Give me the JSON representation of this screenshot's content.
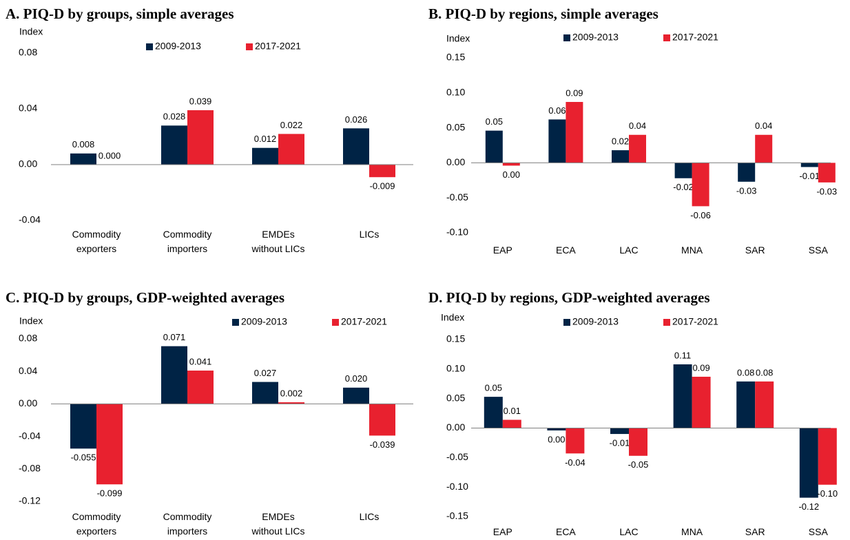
{
  "chart_data": [
    {
      "type": "bar",
      "title": "A. PIQ-D by groups, simple averages",
      "y_label": "Index",
      "categories": [
        "Commodity exporters",
        "Commodity importers",
        "EMDEs without LICs",
        "LICs"
      ],
      "series": [
        {
          "name": "2009-2013",
          "color": "#002345",
          "values": [
            0.008,
            0.028,
            0.012,
            0.026
          ],
          "value_labels": [
            "0.008",
            "0.028",
            "0.012",
            "0.026"
          ]
        },
        {
          "name": "2017-2021",
          "color": "#e8212f",
          "values": [
            0,
            0.039,
            0.022,
            -0.009
          ],
          "value_labels": [
            "0.000",
            "0.039",
            "0.022",
            "-0.009"
          ]
        }
      ],
      "ylim": [
        -0.04,
        0.08
      ],
      "yticks": [
        -0.04,
        {
          "value": 0,
          "label": "0.00"
        },
        0.04,
        0.08
      ]
    },
    {
      "type": "bar",
      "title": "B. PIQ-D by regions, simple averages",
      "y_label": "Index",
      "categories": [
        "EAP",
        "ECA",
        "LAC",
        "MNA",
        "SAR",
        "SSA"
      ],
      "series": [
        {
          "name": "2009-2013",
          "color": "#002345",
          "values": [
            0.046,
            0.062,
            0.018,
            -0.022,
            -0.027,
            -0.006
          ],
          "value_labels": [
            "0.05",
            "0.06",
            "0.02",
            "-0.02",
            "-0.03",
            "-0.01"
          ]
        },
        {
          "name": "2017-2021",
          "color": "#e8212f",
          "values": [
            -0.004,
            0.087,
            0.04,
            -0.062,
            0.04,
            -0.028
          ],
          "value_labels": [
            "0.00",
            "0.09",
            "0.04",
            "-0.06",
            "0.04",
            "-0.03"
          ]
        }
      ],
      "ylim": [
        -0.1,
        0.15
      ],
      "yticks": [
        {
          "value": -0.1,
          "label": "-0.10"
        },
        -0.05,
        {
          "value": 0,
          "label": "0.00"
        },
        0.05,
        {
          "value": 0.1,
          "label": "0.10"
        },
        0.15
      ]
    },
    {
      "type": "bar",
      "title": "C. PIQ-D by groups, GDP-weighted averages",
      "y_label": "Index",
      "categories": [
        "Commodity exporters",
        "Commodity importers",
        "EMDEs without LICs",
        "LICs"
      ],
      "series": [
        {
          "name": "2009-2013",
          "color": "#002345",
          "values": [
            -0.055,
            0.071,
            0.027,
            0.02
          ],
          "value_labels": [
            "-0.055",
            "0.071",
            "0.027",
            "0.020"
          ]
        },
        {
          "name": "2017-2021",
          "color": "#e8212f",
          "values": [
            -0.099,
            0.041,
            0.002,
            -0.039
          ],
          "value_labels": [
            "-0.099",
            "0.041",
            "0.002",
            "-0.039"
          ]
        }
      ],
      "ylim": [
        -0.12,
        0.08
      ],
      "yticks": [
        -0.12,
        -0.08,
        -0.04,
        {
          "value": 0,
          "label": "0.00"
        },
        0.04,
        0.08
      ]
    },
    {
      "type": "bar",
      "title": "D. PIQ-D by regions, GDP-weighted averages",
      "y_label": "Index",
      "categories": [
        "EAP",
        "ECA",
        "LAC",
        "MNA",
        "SAR",
        "SSA"
      ],
      "series": [
        {
          "name": "2009-2013",
          "color": "#002345",
          "values": [
            0.053,
            -0.004,
            -0.01,
            0.108,
            0.079,
            -0.118
          ],
          "value_labels": [
            "0.05",
            "0.00",
            "-0.01",
            "0.11",
            "0.08",
            "-0.12"
          ]
        },
        {
          "name": "2017-2021",
          "color": "#e8212f",
          "values": [
            0.014,
            -0.043,
            -0.047,
            0.087,
            0.079,
            -0.096
          ],
          "value_labels": [
            "0.01",
            "-0.04",
            "-0.05",
            "0.09",
            "0.08",
            "-0.10"
          ]
        }
      ],
      "ylim": [
        -0.15,
        0.15
      ],
      "yticks": [
        -0.15,
        {
          "value": -0.1,
          "label": "-0.10"
        },
        -0.05,
        {
          "value": 0,
          "label": "0.00"
        },
        0.05,
        {
          "value": 0.1,
          "label": "0.10"
        },
        0.15
      ]
    }
  ]
}
